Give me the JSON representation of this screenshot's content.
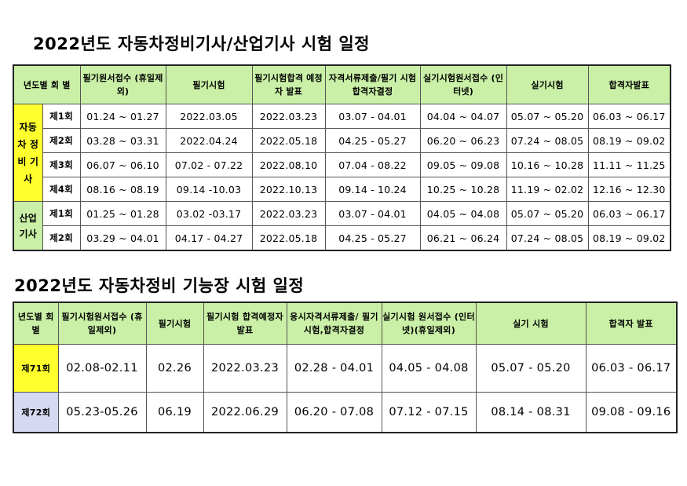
{
  "title1": "2022년도 자동차정비기사/산업기사 시험 일정",
  "title2": "2022년도 자동차정비 기능장 시험 일정",
  "table1": {
    "headers": [
      "년도별 회 별",
      "필기원서접수 (휴일제외)",
      "필기시험",
      "필기시험합격 예정자 발표",
      "자격서류제출/필기 시험합격자결정",
      "실기시험원서접수 (인터넷)",
      "실기시험",
      "합격자발표"
    ],
    "groups": [
      {
        "label": "자동 차 정비 기사"
      },
      {
        "label": "산업 기사"
      }
    ],
    "rows": [
      {
        "round": "제1회",
        "cells": [
          "01.24 ~ 01.27",
          "2022.03.05",
          "2022.03.23",
          "03.07 - 04.01",
          "04.04 ~ 04.07",
          "05.07 ~ 05.20",
          "06.03 ~ 06.17"
        ]
      },
      {
        "round": "제2회",
        "cells": [
          "03.28 ~ 03.31",
          "2022.04.24",
          "2022.05.18",
          "04.25 - 05.27",
          "06.20 ~ 06.23",
          "07.24 ~ 08.05",
          "08.19 ~ 09.02"
        ]
      },
      {
        "round": "제3회",
        "cells": [
          "06.07 ~ 06.10",
          "07.02 - 07.22",
          "2022.08.10",
          "07.04 - 08.22",
          "09.05 ~ 09.08",
          "10.16 ~ 10.28",
          "11.11 ~ 11.25"
        ]
      },
      {
        "round": "제4회",
        "cells": [
          "08.16 ~ 08.19",
          "09.14 -10.03",
          "2022.10.13",
          "09.14 - 10.24",
          "10.25 ~ 10.28",
          "11.19 ~ 02.02",
          "12.16 ~ 12.30"
        ]
      },
      {
        "round": "제1회",
        "cells": [
          "01.25 ~ 01.28",
          "03.02 -03.17",
          "2022.03.23",
          "03.07 - 04.01",
          "04.05 ~ 04.08",
          "05.07 ~ 05.20",
          "06.03 ~ 06.17"
        ]
      },
      {
        "round": "제2회",
        "cells": [
          "03.29 ~ 04.01",
          "04.17 - 04.27",
          "2022.05.18",
          "04.25 - 05.27",
          "06.21 ~ 06.24",
          "07.24 ~ 08.05",
          "08.19 ~ 09.02"
        ]
      }
    ]
  },
  "table2": {
    "headers": [
      "년도별 회 별",
      "필기시험원서접수 (휴일제외)",
      "필기시험",
      "필기시험 합격예정자 발표",
      "응시자격서류제출/ 필기시험,합격자결정",
      "실기시험 원서접수 (인터넷)(휴일제외)",
      "실기 시험",
      "합격자 발표"
    ],
    "rows": [
      {
        "round": "제71회",
        "cells": [
          "02.08-02.11",
          "02.26",
          "2022.03.23",
          "02.28 - 04.01",
          "04.05 - 04.08",
          "05.07 - 05.20",
          "06.03 - 06.17"
        ]
      },
      {
        "round": "제72회",
        "cells": [
          "05.23-05.26",
          "06.19",
          "2022.06.29",
          "06.20 - 07.08",
          "07.12 - 07.15",
          "08.14 - 08.31",
          "09.08 - 09.16"
        ]
      }
    ]
  },
  "colors": {
    "header_green": "#c9f0a6",
    "highlight_yellow": "#ffff2e",
    "label_lavender": "#d5d9f2"
  }
}
